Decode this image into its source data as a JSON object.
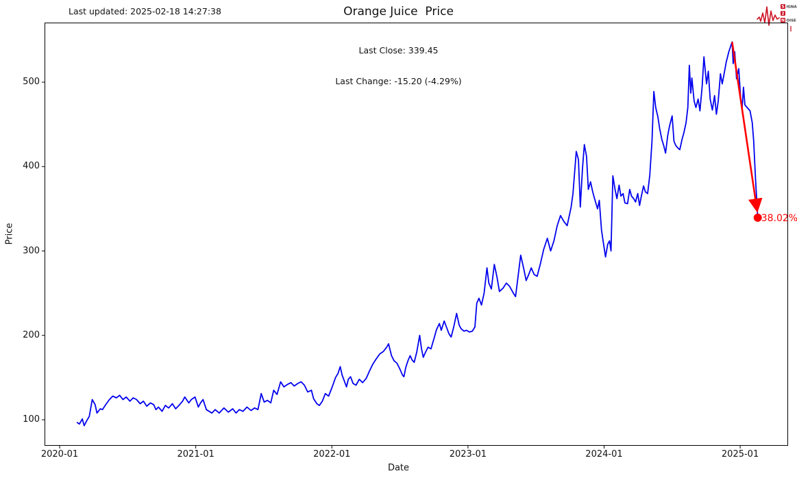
{
  "header": {
    "last_updated": "Last updated: 2025-02-18 14:27:38",
    "title": "Orange Juice  Price",
    "subtitle_line1": "Last Close: 339.45",
    "subtitle_line2": "Last Change: -15.20 (-4.29%)"
  },
  "logo": {
    "name": "signal-2-noise",
    "s_box": "S",
    "s_rest": "IGNAL",
    "two_box": "2",
    "n_box": "N",
    "n_rest": "OISE",
    "color": "#cc1122"
  },
  "chart_data": {
    "type": "line",
    "title": "Orange Juice  Price",
    "xlabel": "Date",
    "ylabel": "Price",
    "grid": false,
    "x_tick_labels": [
      "2020-01",
      "2021-01",
      "2022-01",
      "2023-01",
      "2024-01",
      "2025-01"
    ],
    "y_ticks": [
      100,
      200,
      300,
      400,
      500
    ],
    "x_range_years": [
      2019.889,
      2025.352
    ],
    "y_range": [
      69.2,
      570.6
    ],
    "line_color": "#0000ee",
    "last_close": 339.45,
    "last_change": "-15.20 (-4.29%)",
    "annotation": {
      "type": "drawdown-arrow",
      "from": {
        "date": "2024-12-10",
        "value": 547.65
      },
      "to": {
        "date": "2025-02-18",
        "value": 339.45
      },
      "label": "38.02%",
      "color": "#ff0000"
    },
    "series": [
      {
        "name": "Orange Juice price",
        "color": "#0000ee",
        "points": [
          [
            "2020-02-17",
            97
          ],
          [
            "2020-02-24",
            95
          ],
          [
            "2020-03-01",
            101
          ],
          [
            "2020-03-06",
            93
          ],
          [
            "2020-03-13",
            99
          ],
          [
            "2020-03-20",
            104
          ],
          [
            "2020-03-28",
            124
          ],
          [
            "2020-04-05",
            118
          ],
          [
            "2020-04-10",
            108
          ],
          [
            "2020-04-19",
            113
          ],
          [
            "2020-04-25",
            112
          ],
          [
            "2020-05-03",
            118
          ],
          [
            "2020-05-13",
            124
          ],
          [
            "2020-05-22",
            128
          ],
          [
            "2020-06-01",
            126
          ],
          [
            "2020-06-10",
            129
          ],
          [
            "2020-06-19",
            124
          ],
          [
            "2020-06-28",
            127
          ],
          [
            "2020-07-07",
            122
          ],
          [
            "2020-07-16",
            126
          ],
          [
            "2020-07-25",
            124
          ],
          [
            "2020-08-04",
            119
          ],
          [
            "2020-08-13",
            122
          ],
          [
            "2020-08-22",
            116
          ],
          [
            "2020-09-01",
            120
          ],
          [
            "2020-09-10",
            118
          ],
          [
            "2020-09-16",
            112
          ],
          [
            "2020-09-23",
            115
          ],
          [
            "2020-10-02",
            110
          ],
          [
            "2020-10-11",
            117
          ],
          [
            "2020-10-20",
            114
          ],
          [
            "2020-10-30",
            119
          ],
          [
            "2020-11-08",
            113
          ],
          [
            "2020-11-17",
            117
          ],
          [
            "2020-11-27",
            122
          ],
          [
            "2020-12-02",
            127
          ],
          [
            "2020-12-13",
            120
          ],
          [
            "2020-12-20",
            124
          ],
          [
            "2020-12-30",
            127
          ],
          [
            "2021-01-08",
            115
          ],
          [
            "2021-01-14",
            120
          ],
          [
            "2021-01-21",
            124
          ],
          [
            "2021-01-30",
            112
          ],
          [
            "2021-02-14",
            108
          ],
          [
            "2021-02-23",
            112
          ],
          [
            "2021-03-03",
            108
          ],
          [
            "2021-03-16",
            114
          ],
          [
            "2021-03-28",
            109
          ],
          [
            "2021-04-09",
            113
          ],
          [
            "2021-04-18",
            108
          ],
          [
            "2021-04-27",
            112
          ],
          [
            "2021-05-06",
            110
          ],
          [
            "2021-05-17",
            115
          ],
          [
            "2021-05-28",
            111
          ],
          [
            "2021-06-07",
            114
          ],
          [
            "2021-06-16",
            112
          ],
          [
            "2021-06-25",
            131
          ],
          [
            "2021-07-02",
            121
          ],
          [
            "2021-07-11",
            123
          ],
          [
            "2021-07-20",
            120
          ],
          [
            "2021-07-28",
            135
          ],
          [
            "2021-08-06",
            130
          ],
          [
            "2021-08-16",
            145
          ],
          [
            "2021-08-25",
            139
          ],
          [
            "2021-09-04",
            142
          ],
          [
            "2021-09-13",
            144
          ],
          [
            "2021-09-22",
            140
          ],
          [
            "2021-10-01",
            143
          ],
          [
            "2021-10-10",
            145
          ],
          [
            "2021-10-19",
            141
          ],
          [
            "2021-10-28",
            133
          ],
          [
            "2021-11-07",
            135
          ],
          [
            "2021-11-13",
            125
          ],
          [
            "2021-11-22",
            119
          ],
          [
            "2021-11-29",
            117
          ],
          [
            "2021-12-06",
            122
          ],
          [
            "2021-12-14",
            131
          ],
          [
            "2021-12-23",
            128
          ],
          [
            "2022-01-02",
            139
          ],
          [
            "2022-01-11",
            150
          ],
          [
            "2022-01-18",
            155
          ],
          [
            "2022-01-24",
            163
          ],
          [
            "2022-01-29",
            153
          ],
          [
            "2022-02-04",
            146
          ],
          [
            "2022-02-10",
            139
          ],
          [
            "2022-02-15",
            148
          ],
          [
            "2022-02-21",
            151
          ],
          [
            "2022-02-28",
            143
          ],
          [
            "2022-03-05",
            141
          ],
          [
            "2022-03-14",
            148
          ],
          [
            "2022-03-23",
            144
          ],
          [
            "2022-04-02",
            149
          ],
          [
            "2022-04-11",
            158
          ],
          [
            "2022-04-20",
            166
          ],
          [
            "2022-04-29",
            172
          ],
          [
            "2022-05-08",
            178
          ],
          [
            "2022-05-18",
            181
          ],
          [
            "2022-05-27",
            186
          ],
          [
            "2022-06-01",
            190
          ],
          [
            "2022-06-09",
            176
          ],
          [
            "2022-06-16",
            170
          ],
          [
            "2022-06-24",
            167
          ],
          [
            "2022-07-01",
            160
          ],
          [
            "2022-07-08",
            153
          ],
          [
            "2022-07-12",
            151
          ],
          [
            "2022-07-17",
            162
          ],
          [
            "2022-07-23",
            170
          ],
          [
            "2022-07-29",
            176
          ],
          [
            "2022-08-03",
            171
          ],
          [
            "2022-08-09",
            168
          ],
          [
            "2022-08-16",
            180
          ],
          [
            "2022-08-24",
            200
          ],
          [
            "2022-08-29",
            184
          ],
          [
            "2022-09-03",
            174
          ],
          [
            "2022-09-09",
            180
          ],
          [
            "2022-09-16",
            186
          ],
          [
            "2022-09-24",
            184
          ],
          [
            "2022-10-01",
            196
          ],
          [
            "2022-10-08",
            207
          ],
          [
            "2022-10-16",
            214
          ],
          [
            "2022-10-21",
            206
          ],
          [
            "2022-10-29",
            217
          ],
          [
            "2022-11-04",
            210
          ],
          [
            "2022-11-11",
            202
          ],
          [
            "2022-11-17",
            198
          ],
          [
            "2022-11-24",
            210
          ],
          [
            "2022-12-01",
            226
          ],
          [
            "2022-12-08",
            212
          ],
          [
            "2022-12-13",
            208
          ],
          [
            "2022-12-21",
            205
          ],
          [
            "2022-12-28",
            206
          ],
          [
            "2023-01-05",
            204
          ],
          [
            "2023-01-13",
            205
          ],
          [
            "2023-01-20",
            210
          ],
          [
            "2023-01-25",
            238
          ],
          [
            "2023-01-31",
            244
          ],
          [
            "2023-02-07",
            236
          ],
          [
            "2023-02-14",
            250
          ],
          [
            "2023-02-22",
            280
          ],
          [
            "2023-02-27",
            262
          ],
          [
            "2023-03-03",
            255
          ],
          [
            "2023-03-11",
            284
          ],
          [
            "2023-03-18",
            270
          ],
          [
            "2023-03-25",
            252
          ],
          [
            "2023-04-04",
            256
          ],
          [
            "2023-04-13",
            262
          ],
          [
            "2023-04-22",
            258
          ],
          [
            "2023-05-01",
            250
          ],
          [
            "2023-05-07",
            246
          ],
          [
            "2023-05-14",
            270
          ],
          [
            "2023-05-21",
            295
          ],
          [
            "2023-05-29",
            280
          ],
          [
            "2023-06-05",
            265
          ],
          [
            "2023-06-12",
            272
          ],
          [
            "2023-06-19",
            280
          ],
          [
            "2023-06-27",
            272
          ],
          [
            "2023-07-04",
            270
          ],
          [
            "2023-07-13",
            285
          ],
          [
            "2023-07-22",
            302
          ],
          [
            "2023-08-01",
            315
          ],
          [
            "2023-08-10",
            300
          ],
          [
            "2023-08-19",
            312
          ],
          [
            "2023-08-28",
            330
          ],
          [
            "2023-09-06",
            342
          ],
          [
            "2023-09-15",
            335
          ],
          [
            "2023-09-24",
            330
          ],
          [
            "2023-10-04",
            352
          ],
          [
            "2023-10-09",
            368
          ],
          [
            "2023-10-13",
            390
          ],
          [
            "2023-10-18",
            418
          ],
          [
            "2023-10-24",
            408
          ],
          [
            "2023-10-29",
            352
          ],
          [
            "2023-11-04",
            398
          ],
          [
            "2023-11-09",
            426
          ],
          [
            "2023-11-15",
            412
          ],
          [
            "2023-11-20",
            373
          ],
          [
            "2023-11-26",
            382
          ],
          [
            "2023-12-01",
            370
          ],
          [
            "2023-12-06",
            362
          ],
          [
            "2023-12-14",
            350
          ],
          [
            "2023-12-19",
            360
          ],
          [
            "2023-12-25",
            325
          ],
          [
            "2023-12-30",
            310
          ],
          [
            "2024-01-05",
            293
          ],
          [
            "2024-01-11",
            308
          ],
          [
            "2024-01-16",
            312
          ],
          [
            "2024-01-20",
            300
          ],
          [
            "2024-01-25",
            389
          ],
          [
            "2024-01-31",
            373
          ],
          [
            "2024-02-05",
            362
          ],
          [
            "2024-02-11",
            378
          ],
          [
            "2024-02-16",
            365
          ],
          [
            "2024-02-22",
            368
          ],
          [
            "2024-02-27",
            357
          ],
          [
            "2024-03-03",
            356
          ],
          [
            "2024-03-09",
            373
          ],
          [
            "2024-03-14",
            365
          ],
          [
            "2024-03-20",
            362
          ],
          [
            "2024-03-25",
            358
          ],
          [
            "2024-03-31",
            368
          ],
          [
            "2024-04-05",
            354
          ],
          [
            "2024-04-10",
            365
          ],
          [
            "2024-04-16",
            377
          ],
          [
            "2024-04-21",
            370
          ],
          [
            "2024-04-27",
            368
          ],
          [
            "2024-05-02",
            390
          ],
          [
            "2024-05-08",
            430
          ],
          [
            "2024-05-13",
            489
          ],
          [
            "2024-05-18",
            470
          ],
          [
            "2024-05-24",
            459
          ],
          [
            "2024-05-29",
            445
          ],
          [
            "2024-06-04",
            432
          ],
          [
            "2024-06-09",
            425
          ],
          [
            "2024-06-14",
            416
          ],
          [
            "2024-06-20",
            437
          ],
          [
            "2024-06-25",
            448
          ],
          [
            "2024-07-01",
            460
          ],
          [
            "2024-07-06",
            430
          ],
          [
            "2024-07-11",
            425
          ],
          [
            "2024-07-17",
            422
          ],
          [
            "2024-07-22",
            420
          ],
          [
            "2024-07-28",
            432
          ],
          [
            "2024-08-02",
            440
          ],
          [
            "2024-08-08",
            452
          ],
          [
            "2024-08-13",
            470
          ],
          [
            "2024-08-17",
            520
          ],
          [
            "2024-08-21",
            487
          ],
          [
            "2024-08-24",
            505
          ],
          [
            "2024-08-30",
            478
          ],
          [
            "2024-09-04",
            470
          ],
          [
            "2024-09-10",
            480
          ],
          [
            "2024-09-15",
            466
          ],
          [
            "2024-09-21",
            495
          ],
          [
            "2024-09-26",
            530
          ],
          [
            "2024-10-02",
            498
          ],
          [
            "2024-10-07",
            513
          ],
          [
            "2024-10-12",
            480
          ],
          [
            "2024-10-18",
            467
          ],
          [
            "2024-10-24",
            484
          ],
          [
            "2024-10-29",
            462
          ],
          [
            "2024-11-03",
            478
          ],
          [
            "2024-11-09",
            510
          ],
          [
            "2024-11-14",
            498
          ],
          [
            "2024-11-20",
            512
          ],
          [
            "2024-11-25",
            524
          ],
          [
            "2024-12-01",
            536
          ],
          [
            "2024-12-10",
            547.65
          ],
          [
            "2024-12-13",
            522
          ],
          [
            "2024-12-17",
            536
          ],
          [
            "2024-12-22",
            504
          ],
          [
            "2024-12-28",
            516
          ],
          [
            "2025-01-02",
            483
          ],
          [
            "2025-01-06",
            468
          ],
          [
            "2025-01-10",
            494
          ],
          [
            "2025-01-14",
            473
          ],
          [
            "2025-01-20",
            470
          ],
          [
            "2025-01-28",
            466
          ],
          [
            "2025-02-03",
            452
          ],
          [
            "2025-02-07",
            430
          ],
          [
            "2025-02-12",
            385
          ],
          [
            "2025-02-18",
            339.45
          ]
        ]
      }
    ]
  }
}
